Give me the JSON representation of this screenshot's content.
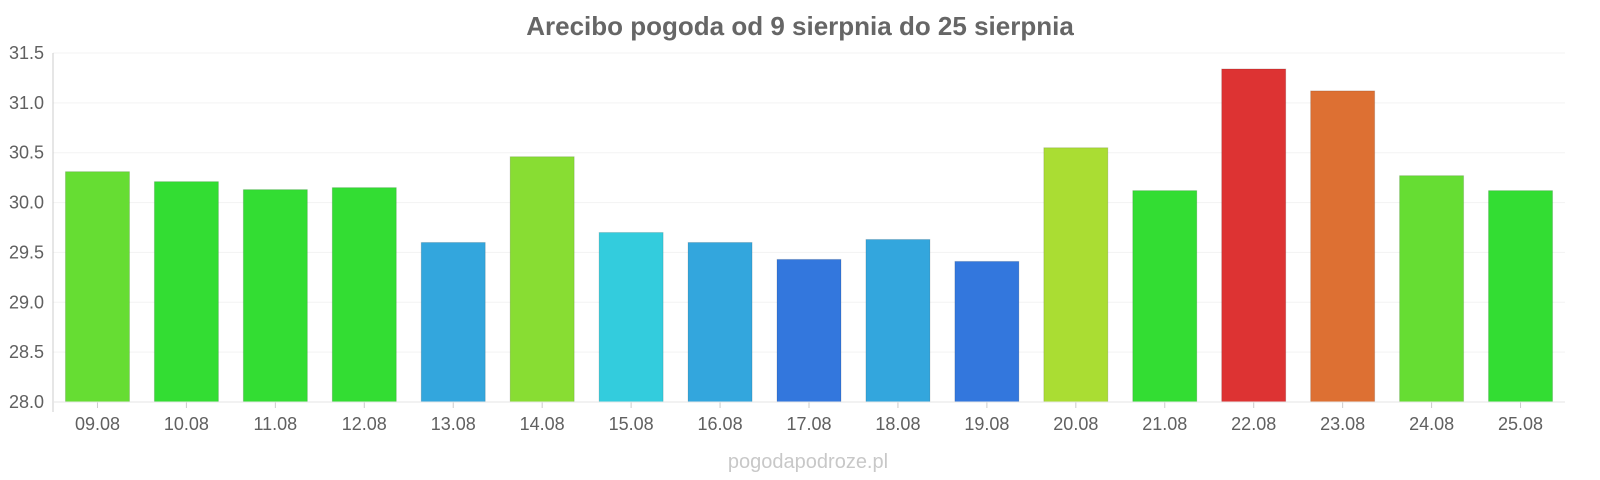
{
  "chart_data": {
    "type": "bar",
    "title": "Arecibo pogoda od 9 sierpnia do 25 sierpnia",
    "xlabel": "",
    "ylabel": "",
    "categories": [
      "09.08",
      "10.08",
      "11.08",
      "12.08",
      "13.08",
      "14.08",
      "15.08",
      "16.08",
      "17.08",
      "18.08",
      "19.08",
      "20.08",
      "21.08",
      "22.08",
      "23.08",
      "24.08",
      "25.08"
    ],
    "values": [
      30.31,
      30.21,
      30.13,
      30.15,
      29.6,
      30.46,
      29.7,
      29.6,
      29.43,
      29.63,
      29.41,
      30.55,
      30.12,
      31.34,
      31.12,
      30.27,
      30.12
    ],
    "colors": [
      "#66dd33",
      "#33dd33",
      "#33dd33",
      "#33dd33",
      "#33a6dd",
      "#88dd33",
      "#33ccdd",
      "#33a6dd",
      "#3377dd",
      "#33a6dd",
      "#3377dd",
      "#aadd33",
      "#33dd33",
      "#dd3333",
      "#dd7033",
      "#66dd33",
      "#33dd33"
    ],
    "ylim": [
      28.0,
      31.5
    ],
    "yticks": [
      "28.0",
      "28.5",
      "29.0",
      "29.5",
      "30.0",
      "30.5",
      "31.0",
      "31.5"
    ],
    "grid": true,
    "legend": "none"
  },
  "watermark": "pogodapodroze.pl"
}
